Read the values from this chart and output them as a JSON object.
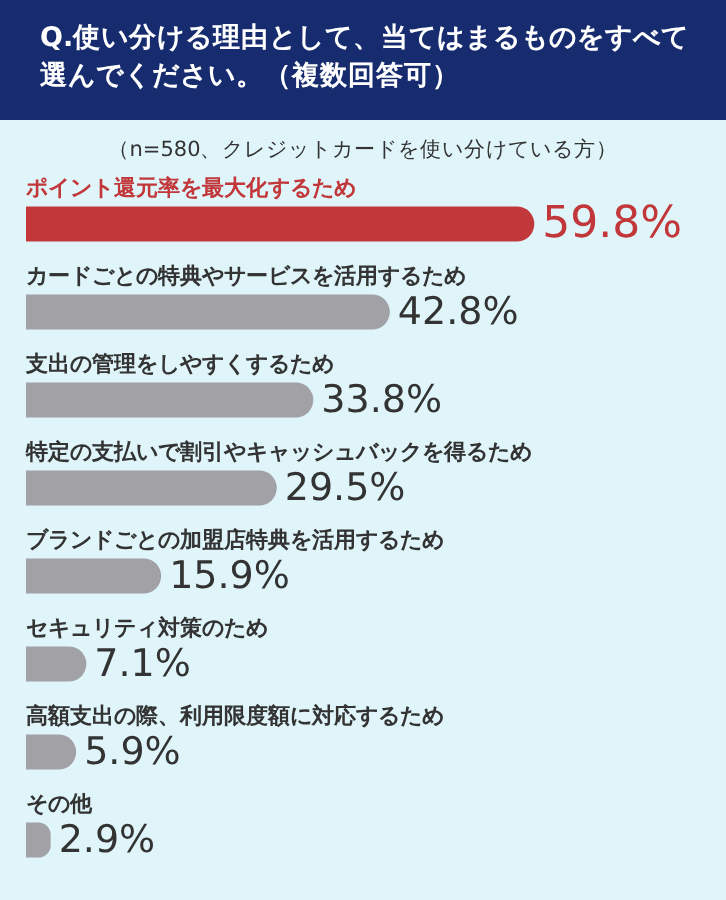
{
  "chart_data": {
    "type": "bar",
    "orientation": "horizontal",
    "title": "Q.使い分ける理由として、当てはまるものをすべて選んでください。（複数回答可）",
    "subtitle": "（n=580、クレジットカードを使い分けている方）",
    "categories": [
      "ポイント還元率を最大化するため",
      "カードごとの特典やサービスを活用するため",
      "支出の管理をしやすくするため",
      "特定の支払いで割引やキャッシュバックを得るため",
      "ブランドごとの加盟店特典を活用するため",
      "セキュリティ対策のため",
      "高額支出の際、利用限度額に対応するため",
      "その他"
    ],
    "values": [
      59.8,
      42.8,
      33.8,
      29.5,
      15.9,
      7.1,
      5.9,
      2.9
    ],
    "colors": [
      "#c1373a",
      "#a1a1a6",
      "#a1a1a6",
      "#a1a1a6",
      "#a1a1a6",
      "#a1a1a6",
      "#a1a1a6",
      "#a1a1a6"
    ],
    "value_labels": [
      "59.8%",
      "42.8%",
      "33.8%",
      "29.5%",
      "15.9%",
      "7.1%",
      "5.9%",
      "2.9%"
    ]
  }
}
